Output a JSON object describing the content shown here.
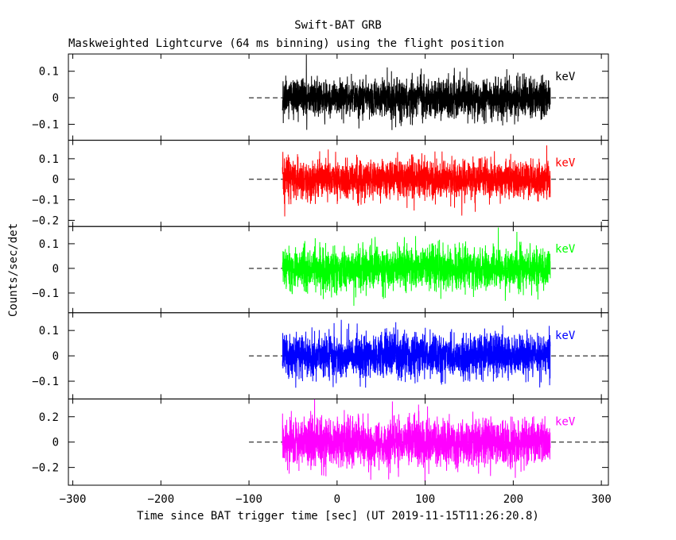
{
  "title": "Swift-BAT GRB",
  "subtitle": "Maskweighted Lightcurve (64 ms binning) using the flight position",
  "ylabel": "Counts/sec/det",
  "xlabel": "Time since BAT trigger time [sec] (UT 2019-11-15T11:26:20.8)",
  "x_ticks": [
    "−300",
    "−200",
    "−100",
    "0",
    "100",
    "200",
    "300"
  ],
  "colors": {
    "axes": "#000000",
    "background": "#ffffff"
  },
  "chart_data": {
    "type": "line",
    "x": {
      "min": -305,
      "max": 308,
      "tick_values": [
        -300,
        -200,
        -100,
        0,
        100,
        200,
        300
      ]
    },
    "data_range": {
      "start": -62,
      "end": 242
    },
    "baseline": {
      "value": 0,
      "from": -100,
      "style": "dashed"
    },
    "panels": [
      {
        "name": "black-band",
        "label": "keV",
        "color": "#000000",
        "ylim": [
          -0.16,
          0.165
        ],
        "yticks": [
          -0.1,
          0,
          0.1
        ],
        "ytick_labels": [
          "−0.1",
          "0",
          "0.1"
        ],
        "noise_sigma": 0.036
      },
      {
        "name": "red-band",
        "label": "keV",
        "color": "#ff0000",
        "ylim": [
          -0.23,
          0.19
        ],
        "yticks": [
          -0.2,
          -0.1,
          0,
          0.1
        ],
        "ytick_labels": [
          "−0.2",
          "−0.1",
          "0",
          "0.1"
        ],
        "noise_sigma": 0.045
      },
      {
        "name": "green-band",
        "label": "keV",
        "color": "#00ff00",
        "ylim": [
          -0.18,
          0.17
        ],
        "yticks": [
          -0.1,
          0,
          0.1
        ],
        "ytick_labels": [
          "−0.1",
          "0",
          "0.1"
        ],
        "noise_sigma": 0.042
      },
      {
        "name": "blue-band",
        "label": "keV",
        "color": "#0000ff",
        "ylim": [
          -0.17,
          0.17
        ],
        "yticks": [
          -0.1,
          0,
          0.1
        ],
        "ytick_labels": [
          "−0.1",
          "0",
          "0.1"
        ],
        "noise_sigma": 0.042
      },
      {
        "name": "magenta-band",
        "label": "keV",
        "color": "#ff00ff",
        "ylim": [
          -0.34,
          0.34
        ],
        "yticks": [
          -0.2,
          0,
          0.2
        ],
        "ytick_labels": [
          "−0.2",
          "0",
          "0.2"
        ],
        "noise_sigma": 0.09
      }
    ]
  }
}
